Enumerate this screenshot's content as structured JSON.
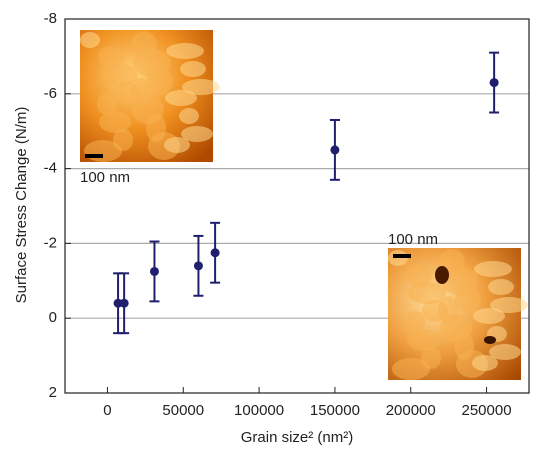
{
  "chart_data": {
    "type": "scatter",
    "xlabel": "Grain size² (nm²)",
    "ylabel": "Surface Stress Change (N/m)",
    "x": [
      7000,
      11000,
      31000,
      60000,
      71000,
      150000,
      255000
    ],
    "series": [
      {
        "color": "#1f1f6e",
        "values": [
          -0.4,
          -0.4,
          -1.25,
          -1.4,
          -1.75,
          -4.5,
          -6.3
        ],
        "errors": [
          0.8,
          0.8,
          0.8,
          0.8,
          0.8,
          0.8,
          0.8
        ]
      }
    ],
    "xlim": [
      -28000,
      278000
    ],
    "ylim": [
      2,
      -8
    ],
    "xticks": [
      0,
      50000,
      100000,
      150000,
      200000,
      250000
    ],
    "yticks": [
      2,
      0,
      -2,
      -4,
      -6,
      -8
    ],
    "grid": true,
    "annotations": [
      "100 nm",
      "100 nm"
    ]
  }
}
